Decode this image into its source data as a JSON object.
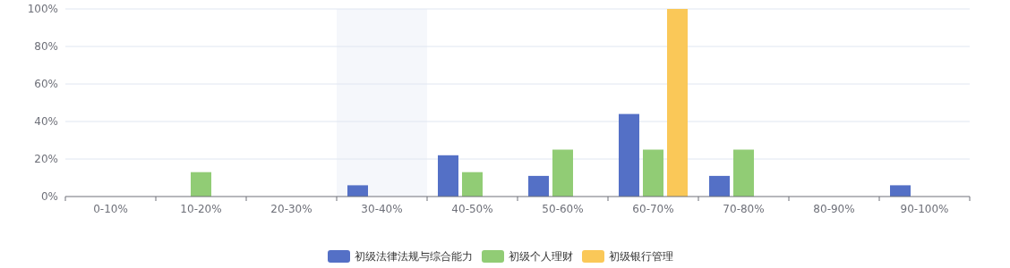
{
  "chart_data": {
    "type": "bar",
    "categories": [
      "0-10%",
      "10-20%",
      "20-30%",
      "30-40%",
      "40-50%",
      "50-60%",
      "60-70%",
      "70-80%",
      "80-90%",
      "90-100%"
    ],
    "series": [
      {
        "name": "初级法律法规与综合能力",
        "color": "#5470c6",
        "values": [
          0,
          0,
          0,
          6,
          22,
          11,
          44,
          11,
          0,
          6
        ]
      },
      {
        "name": "初级个人理财",
        "color": "#91cc75",
        "values": [
          0,
          13,
          0,
          0,
          13,
          25,
          25,
          25,
          0,
          0
        ]
      },
      {
        "name": "初级银行管理",
        "color": "#fac858",
        "values": [
          0,
          0,
          0,
          0,
          0,
          0,
          100,
          0,
          0,
          0
        ]
      }
    ],
    "ylim": [
      0,
      100
    ],
    "yticks": [
      {
        "value": 0,
        "label": "0%"
      },
      {
        "value": 20,
        "label": "20%"
      },
      {
        "value": 40,
        "label": "40%"
      },
      {
        "value": 60,
        "label": "60%"
      },
      {
        "value": 80,
        "label": "80%"
      },
      {
        "value": 100,
        "label": "100%"
      }
    ],
    "grid": "y",
    "legend": "bottom",
    "bands": [
      {
        "axis": "x",
        "from": "30-40%",
        "to": "30-40%",
        "color": "#f5f7fb"
      }
    ]
  }
}
